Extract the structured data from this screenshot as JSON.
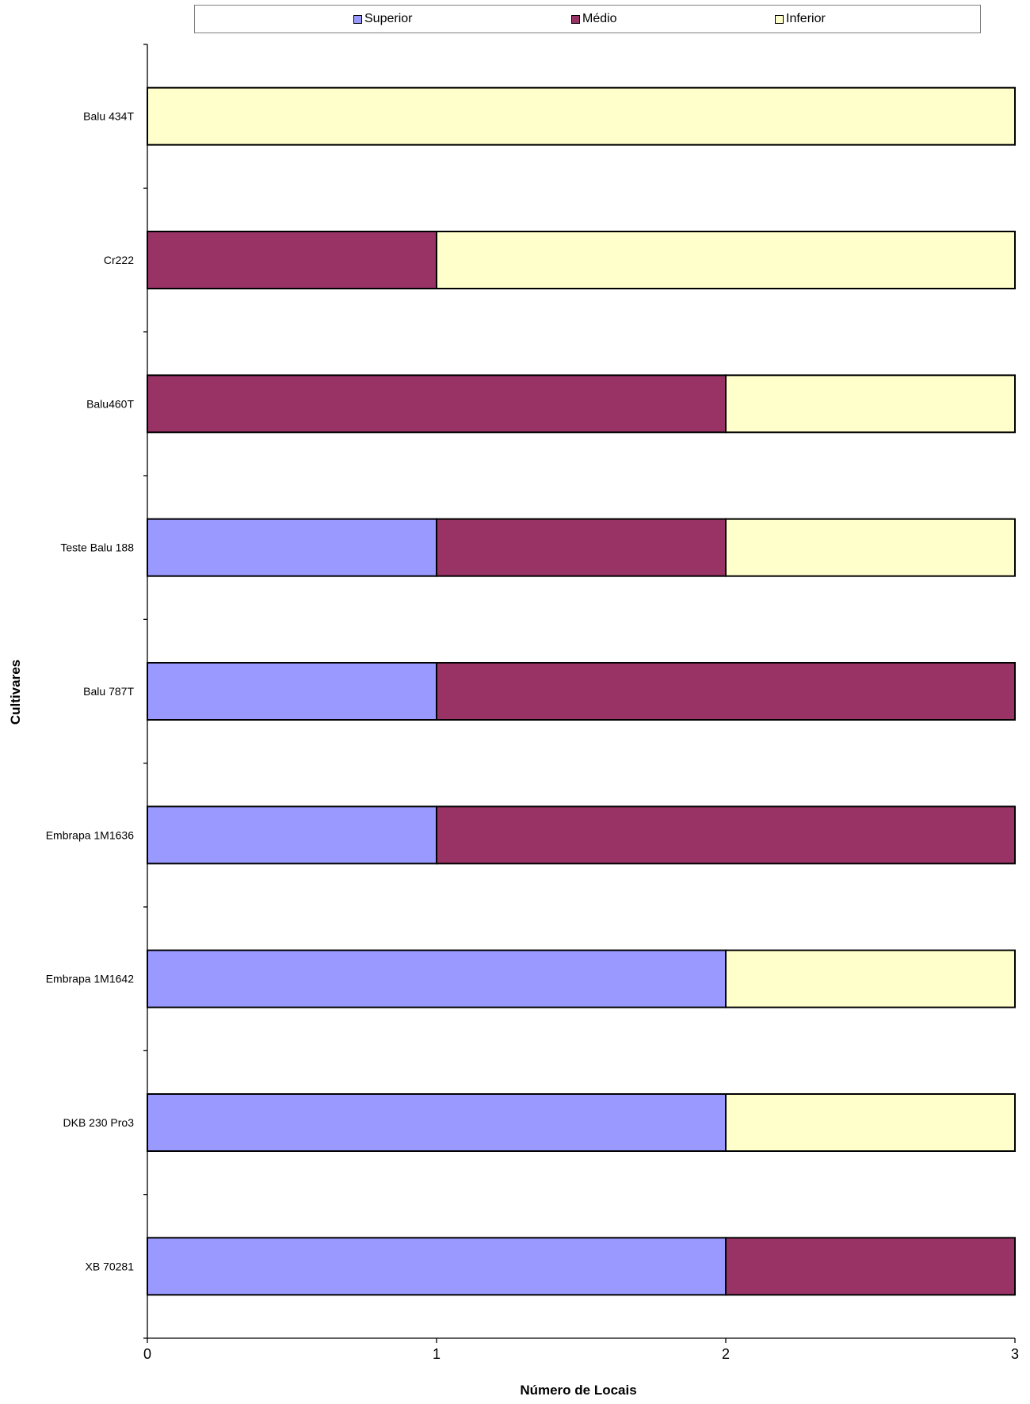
{
  "chart_data": {
    "type": "bar",
    "orientation": "horizontal",
    "stacked": true,
    "title": "",
    "xlabel": "Número de Locais",
    "ylabel": "Cultivares",
    "xlim": [
      0,
      3
    ],
    "x_ticks": [
      "0",
      "1",
      "2",
      "3"
    ],
    "grid": false,
    "legend_position": "top",
    "categories": [
      "Balu 434T",
      "Cr222",
      "Balu460T",
      "Teste Balu 188",
      "Balu 787T",
      "Embrapa 1M1636",
      "Embrapa 1M1642",
      "DKB 230 Pro3",
      "XB 70281"
    ],
    "series": [
      {
        "name": "Superior",
        "color": "#9999ff",
        "values": [
          0,
          0,
          0,
          1,
          1,
          1,
          2,
          2,
          2
        ]
      },
      {
        "name": "Médio",
        "color": "#993366",
        "values": [
          0,
          1,
          2,
          1,
          2,
          2,
          0,
          0,
          1
        ]
      },
      {
        "name": "Inferior",
        "color": "#ffffcc",
        "values": [
          3,
          2,
          1,
          1,
          0,
          0,
          1,
          1,
          0
        ]
      }
    ]
  }
}
